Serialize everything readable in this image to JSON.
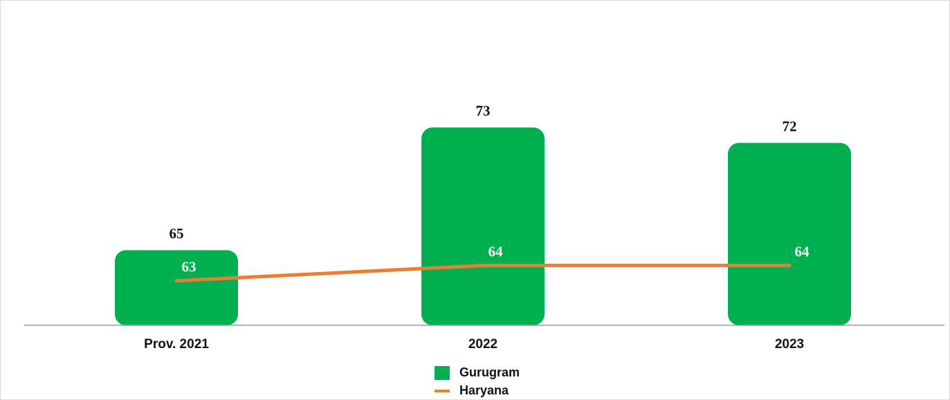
{
  "chart_data": {
    "type": "bar",
    "categories": [
      "Prov. 2021",
      "2022",
      "2023"
    ],
    "series": [
      {
        "name": "Gurugram",
        "type": "bar",
        "color": "#00b050",
        "values": [
          65,
          73,
          72
        ]
      },
      {
        "name": "Haryana",
        "type": "line",
        "color": "#ed7d31",
        "values": [
          63,
          64,
          64
        ]
      }
    ],
    "ylim": [
      60.1,
      75
    ]
  }
}
